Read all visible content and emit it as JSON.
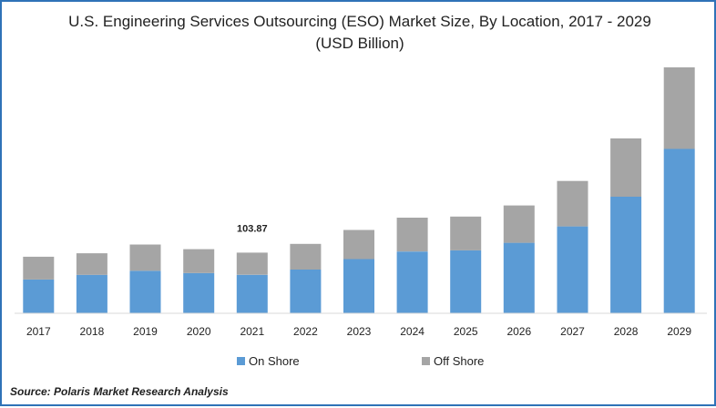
{
  "chart_data": {
    "type": "bar",
    "stacked": true,
    "title": "U.S. Engineering Services Outsourcing (ESO) Market Size, By Location, 2017 - 2029",
    "subtitle": "(USD Billion)",
    "categories": [
      "2017",
      "2018",
      "2019",
      "2020",
      "2021",
      "2022",
      "2023",
      "2024",
      "2025",
      "2026",
      "2027",
      "2028",
      "2029"
    ],
    "series": [
      {
        "name": "On Shore",
        "color": "#5b9bd5",
        "values": [
          58,
          66,
          73,
          69,
          66,
          75,
          93,
          106,
          108,
          121,
          149,
          200,
          282
        ]
      },
      {
        "name": "Off Shore",
        "color": "#a5a5a5",
        "values": [
          39,
          37,
          45,
          41,
          38,
          44,
          50,
          58,
          58,
          64,
          78,
          100,
          140
        ]
      }
    ],
    "data_labels": [
      {
        "category": "2021",
        "text": "103.87"
      }
    ],
    "ylim": [
      0,
      422
    ],
    "grid": false,
    "legend": "bottom",
    "source": "Source: Polaris  Market Research Analysis"
  }
}
